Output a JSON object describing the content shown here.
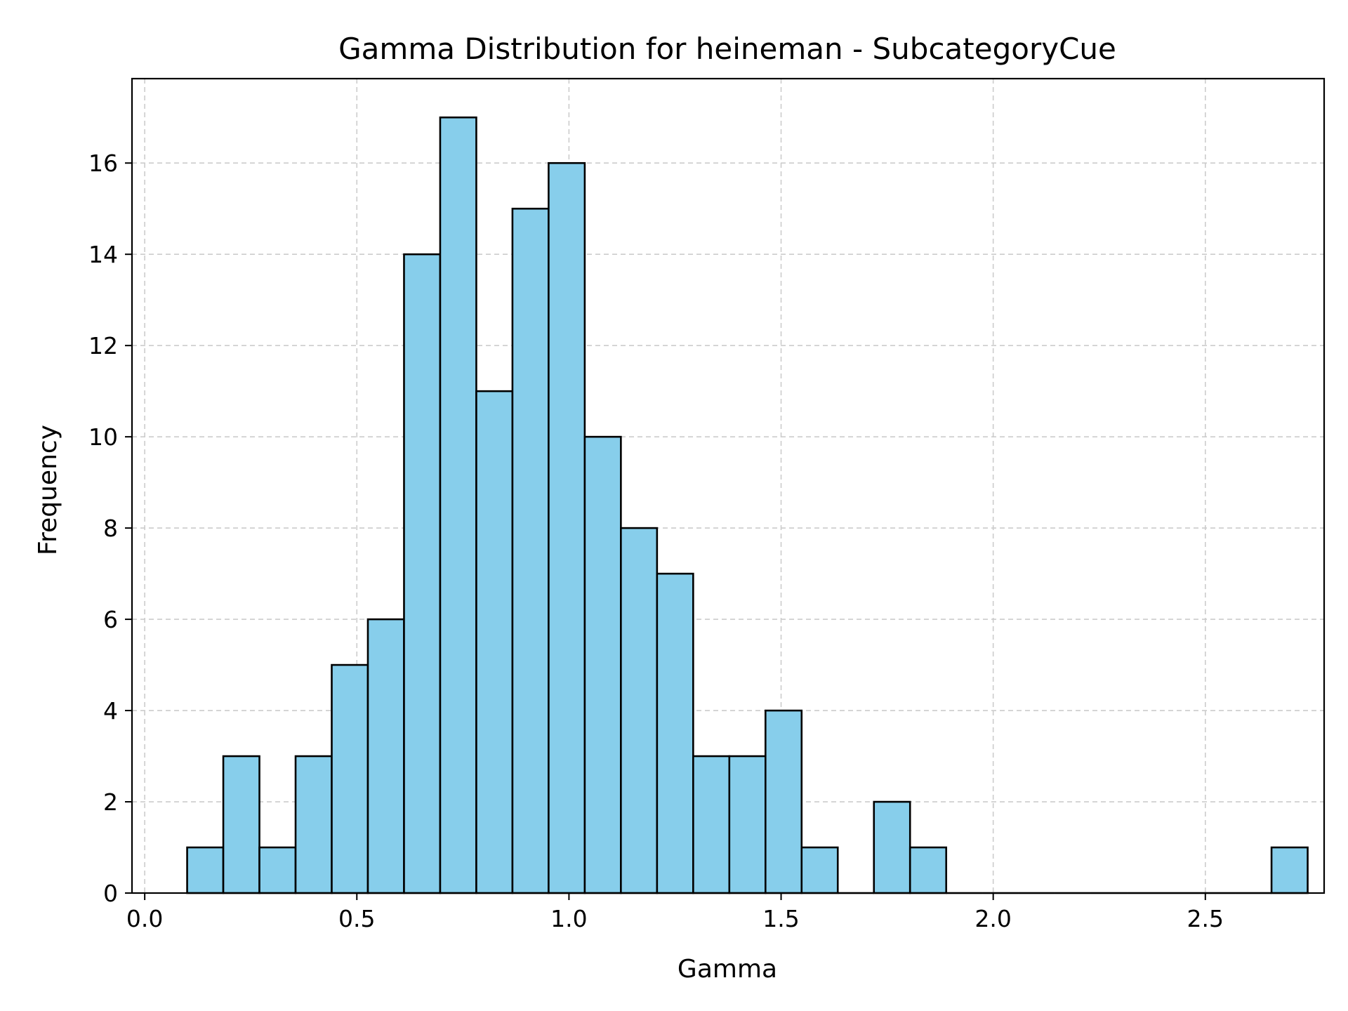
{
  "chart_data": {
    "type": "bar",
    "title": "Gamma Distribution for heineman - SubcategoryCue",
    "xlabel": "Gamma",
    "ylabel": "Frequency",
    "xlim": [
      -0.03,
      2.78
    ],
    "ylim": [
      0,
      17.85
    ],
    "x_ticks": [
      0.0,
      0.5,
      1.0,
      1.5,
      2.0,
      2.5
    ],
    "x_tick_labels": [
      "0.0",
      "0.5",
      "1.0",
      "1.5",
      "2.0",
      "2.5"
    ],
    "y_ticks": [
      0,
      2,
      4,
      6,
      8,
      10,
      12,
      14,
      16
    ],
    "y_tick_labels": [
      "0",
      "2",
      "4",
      "6",
      "8",
      "10",
      "12",
      "14",
      "16"
    ],
    "grid": true,
    "bin_start": 0.1,
    "bin_width": 0.0852,
    "values": [
      1,
      3,
      1,
      3,
      5,
      6,
      14,
      17,
      11,
      15,
      16,
      10,
      8,
      7,
      3,
      3,
      4,
      1,
      0,
      2,
      1,
      0,
      0,
      0,
      0,
      0,
      0,
      0,
      0,
      0,
      1
    ],
    "colors": {
      "bar_fill": "#87CEEB",
      "bar_edge": "#000000",
      "grid": "#cccccc",
      "axis": "#000000"
    }
  }
}
